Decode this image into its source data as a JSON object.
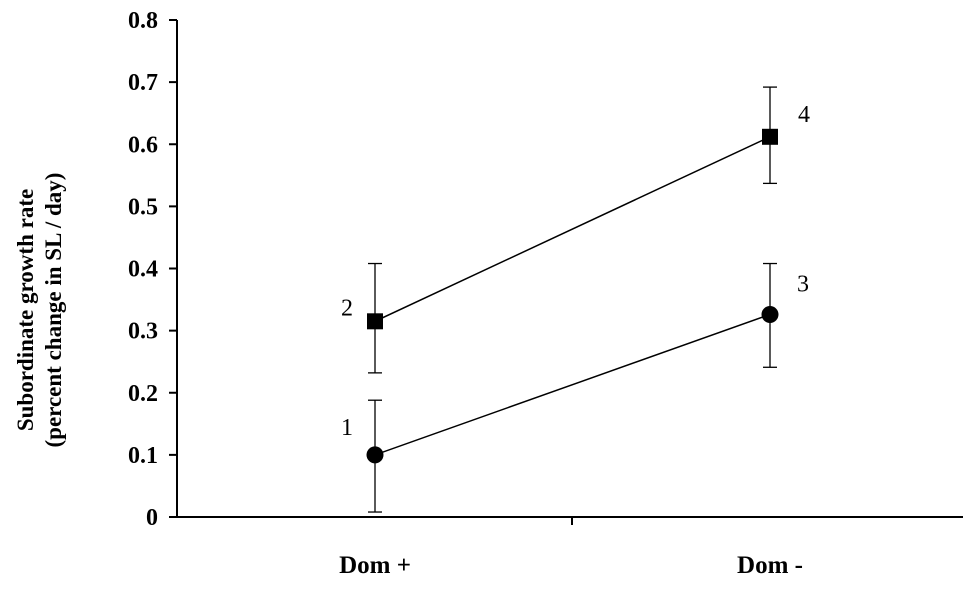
{
  "chart_data": {
    "type": "line",
    "title": "",
    "xlabel": "",
    "ylabel_lines": [
      "Subordinate growth rate",
      "(percent change  in SL / day)"
    ],
    "categories": [
      "Dom +",
      "Dom -"
    ],
    "ylim": [
      0,
      0.8
    ],
    "yticks": [
      "0",
      "0.1",
      "0.2",
      "0.3",
      "0.4",
      "0.5",
      "0.6",
      "0.7",
      "0.8"
    ],
    "grid": false,
    "legend": "none",
    "series": [
      {
        "marker": "square",
        "values": [
          0.315,
          0.612
        ],
        "error_low": [
          0.232,
          0.537
        ],
        "error_high": [
          0.408,
          0.692
        ],
        "point_labels": [
          "2",
          "4"
        ]
      },
      {
        "marker": "circle",
        "values": [
          0.1,
          0.326
        ],
        "error_low": [
          0.008,
          0.241
        ],
        "error_high": [
          0.188,
          0.408
        ],
        "point_labels": [
          "1",
          "3"
        ]
      }
    ]
  }
}
